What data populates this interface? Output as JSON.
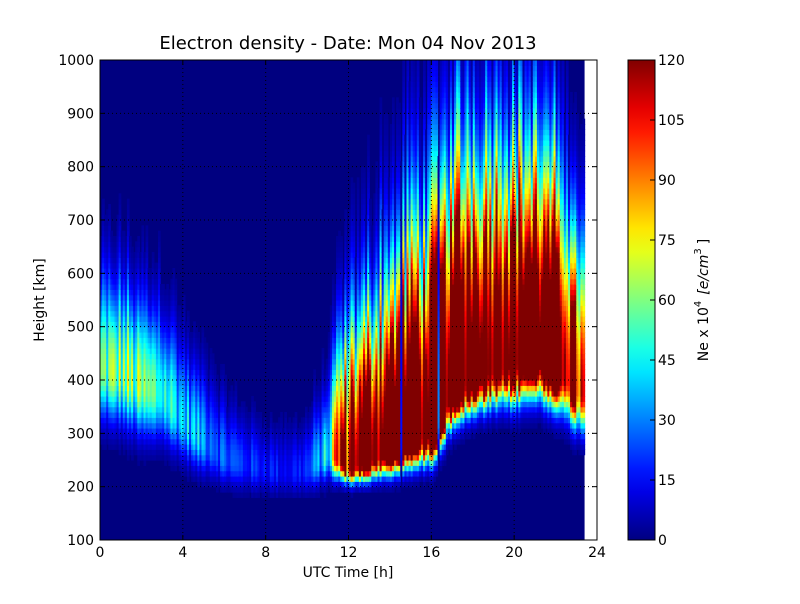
{
  "chart_data": {
    "type": "heatmap",
    "title": "Electron density - Date: Mon 04 Nov 2013",
    "xlabel": "UTC Time [h]",
    "ylabel": "Height [km]",
    "xlim": [
      0,
      24
    ],
    "ylim": [
      100,
      1000
    ],
    "x_ticks": [
      "0",
      "4",
      "8",
      "12",
      "16",
      "20",
      "24"
    ],
    "y_ticks": [
      "100",
      "200",
      "300",
      "400",
      "500",
      "600",
      "700",
      "800",
      "900",
      "1000"
    ],
    "grid": true,
    "data_xmax": 23.4,
    "colormap": "jet",
    "colorbar": {
      "label_prefix": "Ne x 10",
      "label_exp": "4",
      "label_units": "[e/cm",
      "label_units_exp": "3",
      "label_suffix": "]",
      "min": 0,
      "max": 120,
      "ticks": [
        "0",
        "15",
        "30",
        "45",
        "60",
        "75",
        "90",
        "105",
        "120"
      ]
    },
    "profile": {
      "times_h": [
        0,
        1,
        2,
        3,
        4,
        5,
        6,
        7,
        8,
        9,
        10,
        11,
        11.5,
        12,
        13,
        14,
        15,
        16,
        17,
        18,
        19,
        20,
        21,
        22,
        23,
        23.4
      ],
      "peak_height_km": [
        420,
        410,
        390,
        370,
        320,
        280,
        250,
        240,
        230,
        225,
        230,
        260,
        250,
        235,
        250,
        265,
        285,
        300,
        380,
        400,
        420,
        430,
        440,
        420,
        380,
        370
      ],
      "peak_density": [
        55,
        60,
        55,
        50,
        40,
        35,
        25,
        20,
        18,
        15,
        20,
        45,
        110,
        140,
        160,
        170,
        175,
        180,
        185,
        185,
        185,
        180,
        175,
        170,
        120,
        80
      ],
      "lower_thickness_km": [
        80,
        80,
        80,
        70,
        60,
        50,
        40,
        40,
        35,
        35,
        35,
        40,
        30,
        25,
        30,
        35,
        40,
        45,
        50,
        50,
        55,
        60,
        60,
        60,
        60,
        60
      ],
      "upper_thickness_km": [
        150,
        160,
        150,
        150,
        120,
        110,
        90,
        80,
        70,
        70,
        80,
        120,
        200,
        220,
        260,
        300,
        340,
        360,
        380,
        380,
        360,
        360,
        340,
        320,
        280,
        240
      ]
    },
    "dropouts_h": [
      14.5,
      16.3
    ]
  }
}
